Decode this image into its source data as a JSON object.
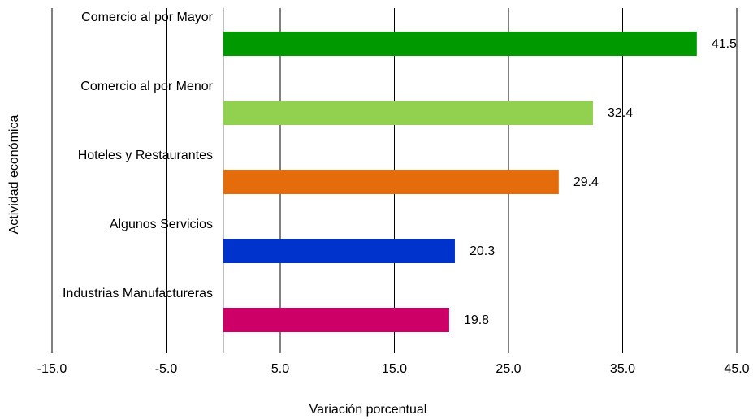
{
  "chart_data": {
    "type": "bar",
    "orientation": "horizontal",
    "xlabel": "Variación porcentual",
    "ylabel": "Actividad económica",
    "categories": [
      "Comercio al por Mayor",
      "Comercio al por Menor",
      "Hoteles y Restaurantes",
      "Algunos Servicios",
      "Industrias Manufactureras"
    ],
    "values": [
      41.5,
      32.4,
      29.4,
      20.3,
      19.8
    ],
    "colors": [
      "#009900",
      "#92d050",
      "#e46c0a",
      "#0033cc",
      "#cc0066"
    ],
    "xlim": [
      -15,
      45
    ],
    "xticks": [
      {
        "value": -15,
        "label": "-15.0"
      },
      {
        "value": -5,
        "label": "-5.0"
      },
      {
        "value": 5,
        "label": "5.0"
      },
      {
        "value": 15,
        "label": "15.0"
      },
      {
        "value": 25,
        "label": "25.0"
      },
      {
        "value": 35,
        "label": "35.0"
      },
      {
        "value": 45,
        "label": "45.0"
      }
    ],
    "grid": true
  }
}
